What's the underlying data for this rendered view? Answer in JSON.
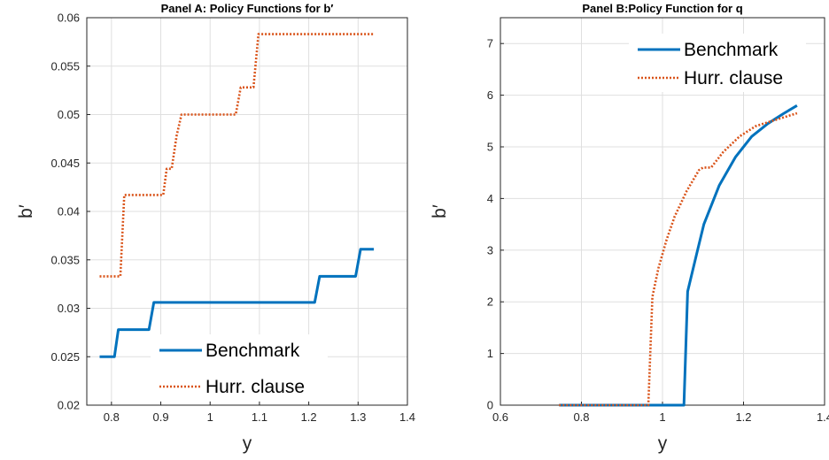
{
  "chart_data": [
    {
      "type": "line",
      "title": "Panel A: Policy Functions for b′",
      "xlabel": "y",
      "ylabel": "b′",
      "xlim": [
        0.75,
        1.4
      ],
      "ylim": [
        0.02,
        0.06
      ],
      "xticks": [
        "0.8",
        "0.9",
        "1",
        "1.1",
        "1.2",
        "1.3",
        "1.4"
      ],
      "yticks": [
        "0.02",
        "0.025",
        "0.03",
        "0.035",
        "0.04",
        "0.045",
        "0.05",
        "0.055",
        "0.06"
      ],
      "grid": true,
      "legend_position": "bottom-right",
      "series": [
        {
          "name": "Benchmark",
          "color": "#0072BD",
          "style": "solid",
          "x": [
            0.776,
            0.806,
            0.814,
            0.876,
            0.886,
            1.212,
            1.222,
            1.295,
            1.305,
            1.332
          ],
          "y": [
            0.025,
            0.025,
            0.0278,
            0.0278,
            0.0306,
            0.0306,
            0.0333,
            0.0333,
            0.0361,
            0.0361
          ]
        },
        {
          "name": "Hurr. clause",
          "color": "#D95319",
          "style": "dotted",
          "x": [
            0.776,
            0.818,
            0.826,
            0.905,
            0.912,
            0.922,
            0.932,
            0.942,
            1.052,
            1.062,
            1.088,
            1.098,
            1.332
          ],
          "y": [
            0.0333,
            0.0333,
            0.0417,
            0.0417,
            0.0444,
            0.0444,
            0.0478,
            0.05,
            0.05,
            0.0528,
            0.0528,
            0.0583,
            0.0583
          ]
        }
      ]
    },
    {
      "type": "line",
      "title": "Panel B:Policy Function for q",
      "xlabel": "y",
      "ylabel": "b′",
      "xlim": [
        0.6,
        1.4
      ],
      "ylim": [
        0,
        7.5
      ],
      "xticks": [
        "0.6",
        "0.8",
        "1",
        "1.2",
        "1.4"
      ],
      "yticks": [
        "0",
        "1",
        "2",
        "3",
        "4",
        "5",
        "6",
        "7"
      ],
      "grid": true,
      "legend_position": "top-right",
      "series": [
        {
          "name": "Benchmark",
          "color": "#0072BD",
          "style": "solid",
          "x": [
            0.745,
            1.053,
            1.062,
            1.085,
            1.102,
            1.14,
            1.18,
            1.22,
            1.26,
            1.3,
            1.332
          ],
          "y": [
            0,
            0,
            2.2,
            2.95,
            3.5,
            4.25,
            4.8,
            5.2,
            5.45,
            5.65,
            5.8
          ],
          "label": "Benchmark"
        },
        {
          "name": "Hurr. clause",
          "color": "#D95319",
          "style": "dotted",
          "x": [
            0.745,
            0.965,
            0.975,
            0.99,
            1.01,
            1.03,
            1.06,
            1.09,
            1.1,
            1.12,
            1.15,
            1.19,
            1.23,
            1.27,
            1.332
          ],
          "y": [
            0,
            0,
            2.1,
            2.65,
            3.2,
            3.65,
            4.15,
            4.55,
            4.6,
            4.6,
            4.9,
            5.2,
            5.4,
            5.5,
            5.65
          ]
        }
      ]
    }
  ]
}
